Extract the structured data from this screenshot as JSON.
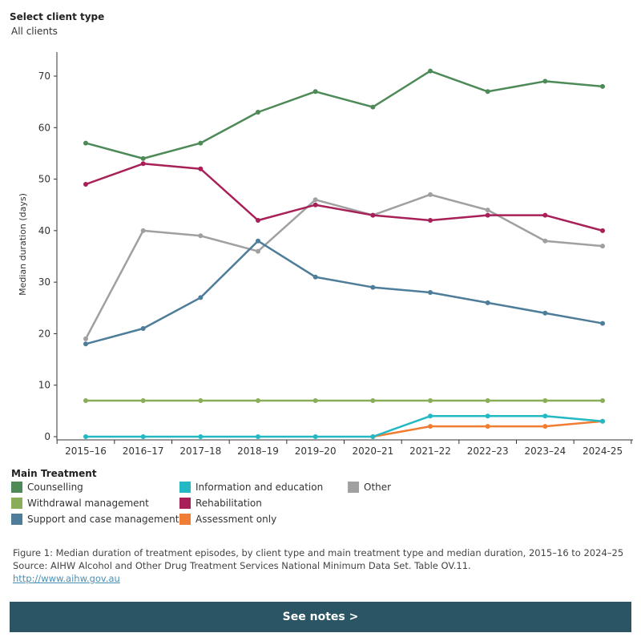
{
  "filter": {
    "label": "Select client type",
    "value": "All clients"
  },
  "legend_title": "Main Treatment",
  "legend": [
    {
      "name": "Counselling",
      "color": "#4e8a57"
    },
    {
      "name": "Withdrawal management",
      "color": "#8aad5a"
    },
    {
      "name": "Support and case management",
      "color": "#4e7d99"
    },
    {
      "name": "Information and education",
      "color": "#22b8c4"
    },
    {
      "name": "Rehabilitation",
      "color": "#a82058"
    },
    {
      "name": "Assessment only",
      "color": "#ef7d33"
    },
    {
      "name": "Other",
      "color": "#a0a0a0"
    }
  ],
  "caption": {
    "line1": "Figure 1: Median duration of treatment episodes, by client type and main treatment type and median duration, 2015–16 to 2024–25",
    "line2": "Source: AIHW Alcohol and Other Drug Treatment Services National Minimum Data Set. Table OV.11.",
    "link": "http://www.aihw.gov.au"
  },
  "notes_button": "See notes >",
  "chart_data": {
    "type": "line",
    "ylabel": "Median duration (days)",
    "xlabel": "",
    "categories": [
      "2015–16",
      "2016–17",
      "2017–18",
      "2018–19",
      "2019–20",
      "2020–21",
      "2021–22",
      "2022–23",
      "2023–24",
      "2024-25"
    ],
    "ylim": [
      0,
      75
    ],
    "yticks": [
      0,
      10,
      20,
      30,
      40,
      50,
      60,
      70
    ],
    "grid": false,
    "series": [
      {
        "name": "Counselling",
        "color": "#4e8a57",
        "values": [
          57,
          54,
          57,
          63,
          67,
          64,
          71,
          67,
          69,
          68
        ]
      },
      {
        "name": "Other",
        "color": "#a0a0a0",
        "values": [
          19,
          40,
          39,
          36,
          46,
          43,
          47,
          44,
          38,
          37
        ]
      },
      {
        "name": "Rehabilitation",
        "color": "#a82058",
        "values": [
          49,
          53,
          52,
          42,
          45,
          43,
          42,
          43,
          43,
          40
        ]
      },
      {
        "name": "Support and case management",
        "color": "#4e7d99",
        "values": [
          18,
          21,
          27,
          38,
          31,
          29,
          28,
          26,
          24,
          22
        ]
      },
      {
        "name": "Withdrawal management",
        "color": "#8aad5a",
        "values": [
          7,
          7,
          7,
          7,
          7,
          7,
          7,
          7,
          7,
          7
        ]
      },
      {
        "name": "Assessment only",
        "color": "#ef7d33",
        "values": [
          null,
          null,
          null,
          null,
          null,
          0,
          2,
          2,
          2,
          3
        ]
      },
      {
        "name": "Information and education",
        "color": "#22b8c4",
        "values": [
          0,
          0,
          0,
          0,
          0,
          0,
          4,
          4,
          4,
          3
        ]
      }
    ]
  }
}
